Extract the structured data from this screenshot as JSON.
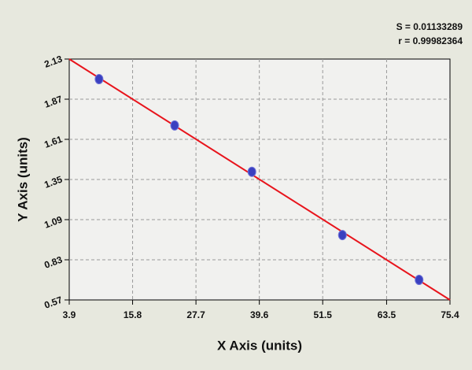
{
  "chart_data": {
    "type": "scatter",
    "annotations": [
      "S = 0.01133289",
      "r = 0.99982364"
    ],
    "x_label": "X Axis (units)",
    "y_label": "Y Axis (units)",
    "xlim": [
      3.9,
      75.4
    ],
    "ylim": [
      0.57,
      2.13
    ],
    "xticks": [
      3.9,
      15.8,
      27.7,
      39.6,
      51.5,
      63.5,
      75.4
    ],
    "yticks": [
      0.57,
      0.83,
      1.09,
      1.35,
      1.61,
      1.87,
      2.13
    ],
    "grid": true,
    "series": [
      {
        "type": "scatter",
        "color": "#3a40c0",
        "x": [
          9.5,
          23.7,
          38.2,
          55.2,
          69.6
        ],
        "values": [
          2.0,
          1.7,
          1.4,
          0.99,
          0.7
        ]
      },
      {
        "type": "line",
        "color": "#e8141c",
        "x": [
          3.9,
          75.4
        ],
        "values": [
          2.13,
          0.57
        ]
      }
    ]
  }
}
